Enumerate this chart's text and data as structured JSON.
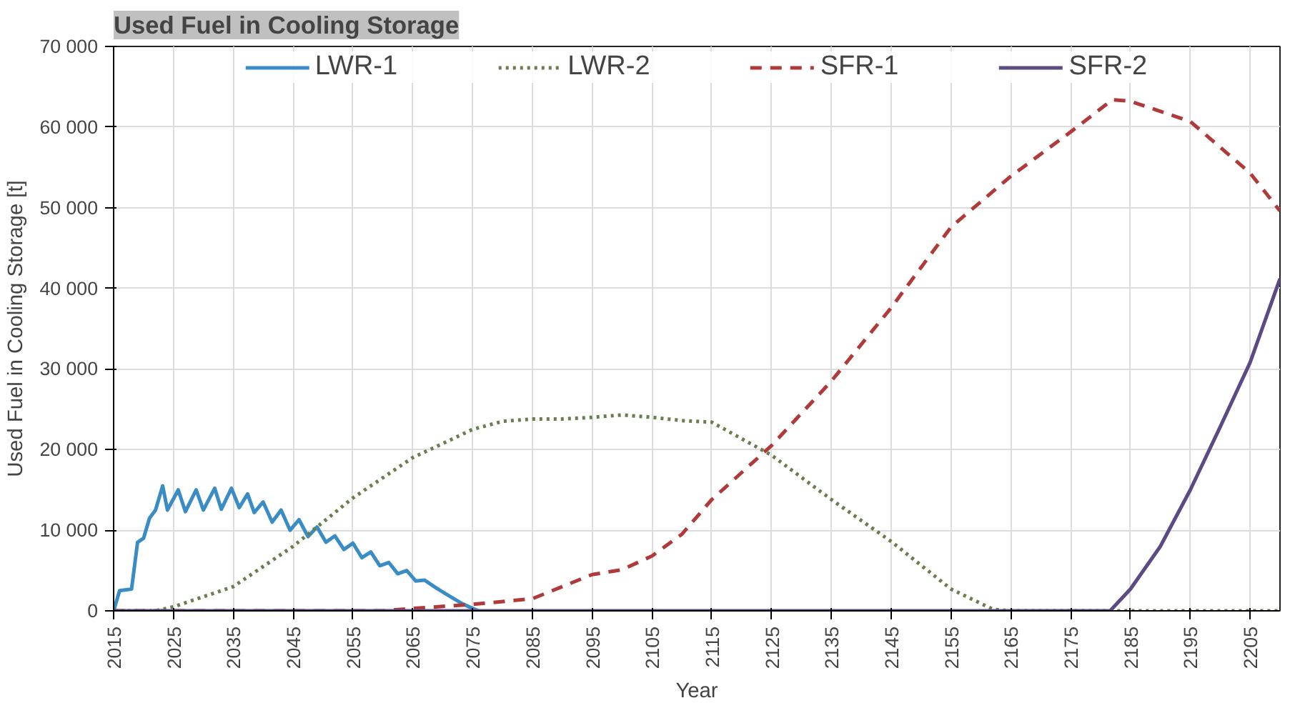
{
  "chart_data": {
    "type": "line",
    "title": "Used Fuel in Cooling Storage",
    "xlabel": "Year",
    "ylabel": "Used Fuel in Cooling Storage [t]",
    "xlim": [
      2015,
      2210
    ],
    "xticks": [
      2015,
      2025,
      2035,
      2045,
      2055,
      2065,
      2075,
      2085,
      2095,
      2105,
      2115,
      2125,
      2135,
      2145,
      2155,
      2165,
      2175,
      2185,
      2195,
      2205
    ],
    "ylim": [
      0,
      70000
    ],
    "yticks": [
      0,
      {
        "value": 10000,
        "label": "10 000"
      },
      {
        "value": 20000,
        "label": "20 000"
      },
      {
        "value": 30000,
        "label": "30 000"
      },
      {
        "value": 40000,
        "label": "40 000"
      },
      {
        "value": 50000,
        "label": "50 000"
      },
      {
        "value": 60000,
        "label": "60 000"
      },
      {
        "value": 70000,
        "label": "70 000"
      }
    ],
    "grid": true,
    "legend": "top",
    "series": [
      {
        "name": "LWR-1",
        "color": "#3a8cc4",
        "line_style": "solid",
        "x": [
          2015,
          2016,
          2018,
          2019,
          2020,
          2021,
          2022,
          2023.2,
          2024,
          2025.8,
          2027,
          2028.8,
          2030,
          2031.9,
          2033,
          2034.7,
          2036,
          2037.4,
          2038.5,
          2040,
          2041.5,
          2043,
          2044.5,
          2046,
          2047.5,
          2049,
          2050.5,
          2052,
          2053.5,
          2055,
          2056.5,
          2058,
          2059.5,
          2061,
          2062.5,
          2064,
          2065.5,
          2067,
          2069,
          2071,
          2073,
          2075,
          2076
        ],
        "values": [
          0,
          2500,
          2700,
          8500,
          9000,
          11500,
          12500,
          15500,
          12500,
          15000,
          12300,
          15000,
          12500,
          15200,
          12600,
          15200,
          12800,
          14500,
          12200,
          13500,
          11000,
          12500,
          10000,
          11300,
          9200,
          10400,
          8500,
          9300,
          7600,
          8400,
          6600,
          7300,
          5600,
          6000,
          4600,
          5000,
          3700,
          3800,
          2800,
          1900,
          1000,
          300,
          0
        ]
      },
      {
        "name": "LWR-2",
        "color": "#6b7d4e",
        "line_style": "dotted",
        "x": [
          2015,
          2022,
          2025,
          2035,
          2045,
          2055,
          2065,
          2075,
          2080,
          2085,
          2090,
          2095,
          2100,
          2105,
          2110,
          2115,
          2125,
          2135,
          2145,
          2155,
          2162,
          2165,
          2210
        ],
        "values": [
          0,
          0,
          500,
          3000,
          8000,
          14000,
          19000,
          22500,
          23500,
          23800,
          23800,
          24000,
          24300,
          24000,
          23600,
          23400,
          19300,
          13800,
          8600,
          2700,
          200,
          0,
          0
        ]
      },
      {
        "name": "SFR-1",
        "color": "#b03a3a",
        "line_style": "dashed",
        "x": [
          2015,
          2060,
          2065,
          2075,
          2085,
          2090,
          2095,
          2100,
          2105,
          2110,
          2115,
          2125,
          2135,
          2145,
          2155,
          2165,
          2175,
          2182,
          2185,
          2195,
          2205,
          2210
        ],
        "values": [
          0,
          0,
          300,
          800,
          1500,
          3000,
          4500,
          5100,
          6800,
          9500,
          13800,
          20500,
          28500,
          37600,
          47600,
          53900,
          59400,
          63400,
          63200,
          60700,
          54300,
          49600
        ]
      },
      {
        "name": "SFR-2",
        "color": "#5c4a85",
        "line_style": "solid",
        "x": [
          2015,
          2181.6,
          2185,
          2190,
          2195,
          2200,
          2205,
          2210
        ],
        "values": [
          0,
          0,
          2700,
          8000,
          15000,
          22800,
          30800,
          41200
        ]
      }
    ]
  }
}
